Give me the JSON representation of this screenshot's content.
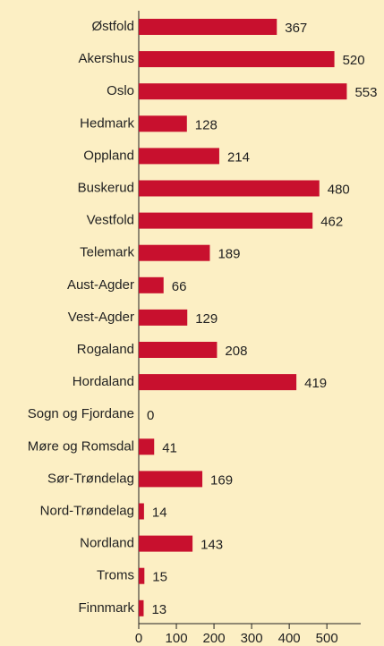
{
  "chart_data": {
    "type": "barh",
    "categories": [
      "Østfold",
      "Akershus",
      "Oslo",
      "Hedmark",
      "Oppland",
      "Buskerud",
      "Vestfold",
      "Telemark",
      "Aust-Agder",
      "Vest-Agder",
      "Rogaland",
      "Hordaland",
      "Sogn og Fjordane",
      "Møre og Romsdal",
      "Sør-Trøndelag",
      "Nord-Trøndelag",
      "Nordland",
      "Troms",
      "Finnmark"
    ],
    "values": [
      367,
      520,
      553,
      128,
      214,
      480,
      462,
      189,
      66,
      129,
      208,
      419,
      0,
      41,
      169,
      14,
      143,
      15,
      13
    ],
    "color": "#c8102e",
    "xlim": [
      0,
      590
    ],
    "xticks": [
      0,
      100,
      200,
      300,
      400,
      500
    ],
    "grid": false
  }
}
